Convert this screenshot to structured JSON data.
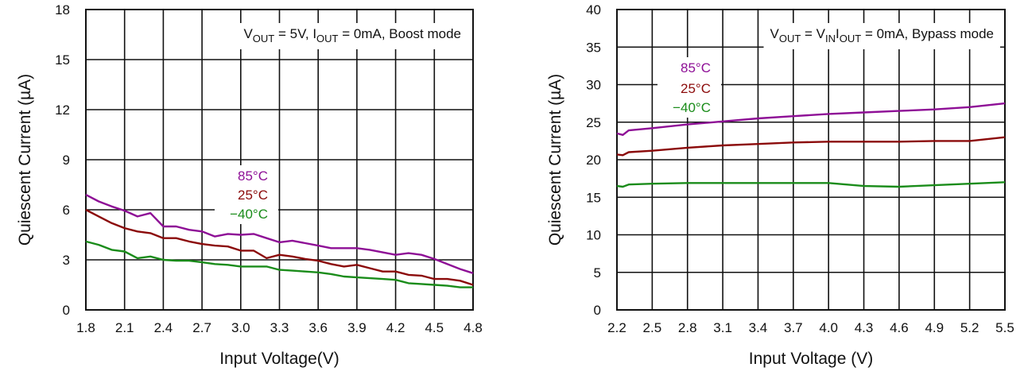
{
  "colors": {
    "85C": "#8e0f96",
    "25C": "#8b0a0a",
    "-40C": "#1a8c1a"
  },
  "chart_data": [
    {
      "type": "line",
      "xlabel": "Input Voltage(V)",
      "ylabel": "Quiescent Current (µA)",
      "xlim": [
        1.8,
        4.8
      ],
      "ylim": [
        0,
        18
      ],
      "xticks": [
        "1.8",
        "2.1",
        "2.4",
        "2.7",
        "3.0",
        "3.3",
        "3.6",
        "3.9",
        "4.2",
        "4.5",
        "4.8"
      ],
      "yticks": [
        "0",
        "3",
        "6",
        "9",
        "12",
        "15",
        "18"
      ],
      "grid": true,
      "annotation": {
        "v": "V",
        "vsub": "OUT",
        "vrest": " = 5V, ",
        "i": "I",
        "isub": "OUT",
        "irest": " = 0mA, Boost mode"
      },
      "x": [
        1.8,
        1.9,
        2.0,
        2.1,
        2.2,
        2.3,
        2.4,
        2.5,
        2.6,
        2.7,
        2.8,
        2.9,
        3.0,
        3.1,
        3.2,
        3.3,
        3.4,
        3.5,
        3.6,
        3.7,
        3.8,
        3.9,
        4.0,
        4.1,
        4.2,
        4.3,
        4.4,
        4.5,
        4.6,
        4.7,
        4.8
      ],
      "series": [
        {
          "name": "85°C",
          "color": "#8e0f96",
          "values": [
            6.9,
            6.5,
            6.2,
            5.95,
            5.6,
            5.8,
            5.0,
            5.0,
            4.8,
            4.7,
            4.4,
            4.55,
            4.5,
            4.55,
            4.3,
            4.05,
            4.15,
            4.0,
            3.85,
            3.7,
            3.7,
            3.7,
            3.6,
            3.45,
            3.3,
            3.4,
            3.3,
            3.05,
            2.75,
            2.45,
            2.2
          ]
        },
        {
          "name": "25°C",
          "color": "#8b0a0a",
          "values": [
            6.0,
            5.6,
            5.2,
            4.9,
            4.7,
            4.6,
            4.3,
            4.3,
            4.1,
            3.95,
            3.85,
            3.8,
            3.55,
            3.55,
            3.1,
            3.3,
            3.2,
            3.05,
            2.95,
            2.75,
            2.6,
            2.7,
            2.5,
            2.3,
            2.3,
            2.1,
            2.05,
            1.85,
            1.85,
            1.75,
            1.5
          ]
        },
        {
          "name": "−40°C",
          "color": "#1a8c1a",
          "values": [
            4.1,
            3.9,
            3.6,
            3.5,
            3.1,
            3.2,
            3.0,
            2.95,
            2.95,
            2.85,
            2.75,
            2.7,
            2.6,
            2.6,
            2.6,
            2.4,
            2.35,
            2.3,
            2.25,
            2.15,
            2.0,
            1.95,
            1.9,
            1.85,
            1.8,
            1.6,
            1.55,
            1.5,
            1.45,
            1.35,
            1.35
          ]
        }
      ]
    },
    {
      "type": "line",
      "xlabel": "Input Voltage (V)",
      "ylabel": "Quiescent Current (µA)",
      "xlim": [
        2.2,
        5.5
      ],
      "ylim": [
        0,
        40
      ],
      "xticks": [
        "2.2",
        "2.5",
        "2.8",
        "3.1",
        "3.4",
        "3.7",
        "4.0",
        "4.3",
        "4.6",
        "4.9",
        "5.2",
        "5.5"
      ],
      "yticks": [
        "0",
        "5",
        "10",
        "15",
        "20",
        "25",
        "30",
        "35",
        "40"
      ],
      "grid": true,
      "annotation": {
        "v": "V",
        "vsub": "OUT",
        "vrest": " = V",
        "vinsub": "IN",
        "i": "I",
        "isub": "OUT",
        "irest": " = 0mA, Bypass mode"
      },
      "x": [
        2.2,
        2.25,
        2.3,
        2.5,
        2.8,
        3.1,
        3.4,
        3.7,
        4.0,
        4.3,
        4.6,
        4.9,
        5.2,
        5.5
      ],
      "series": [
        {
          "name": "85°C",
          "color": "#8e0f96",
          "values": [
            23.5,
            23.3,
            23.9,
            24.2,
            24.7,
            25.1,
            25.5,
            25.8,
            26.1,
            26.3,
            26.5,
            26.7,
            27.0,
            27.5
          ]
        },
        {
          "name": "25°C",
          "color": "#8b0a0a",
          "values": [
            20.7,
            20.6,
            21.0,
            21.2,
            21.6,
            21.9,
            22.1,
            22.3,
            22.4,
            22.4,
            22.4,
            22.5,
            22.5,
            23.0
          ]
        },
        {
          "name": "−40°C",
          "color": "#1a8c1a",
          "values": [
            16.5,
            16.4,
            16.7,
            16.8,
            16.9,
            16.9,
            16.9,
            16.9,
            16.9,
            16.5,
            16.4,
            16.6,
            16.8,
            17.0
          ]
        }
      ]
    }
  ]
}
